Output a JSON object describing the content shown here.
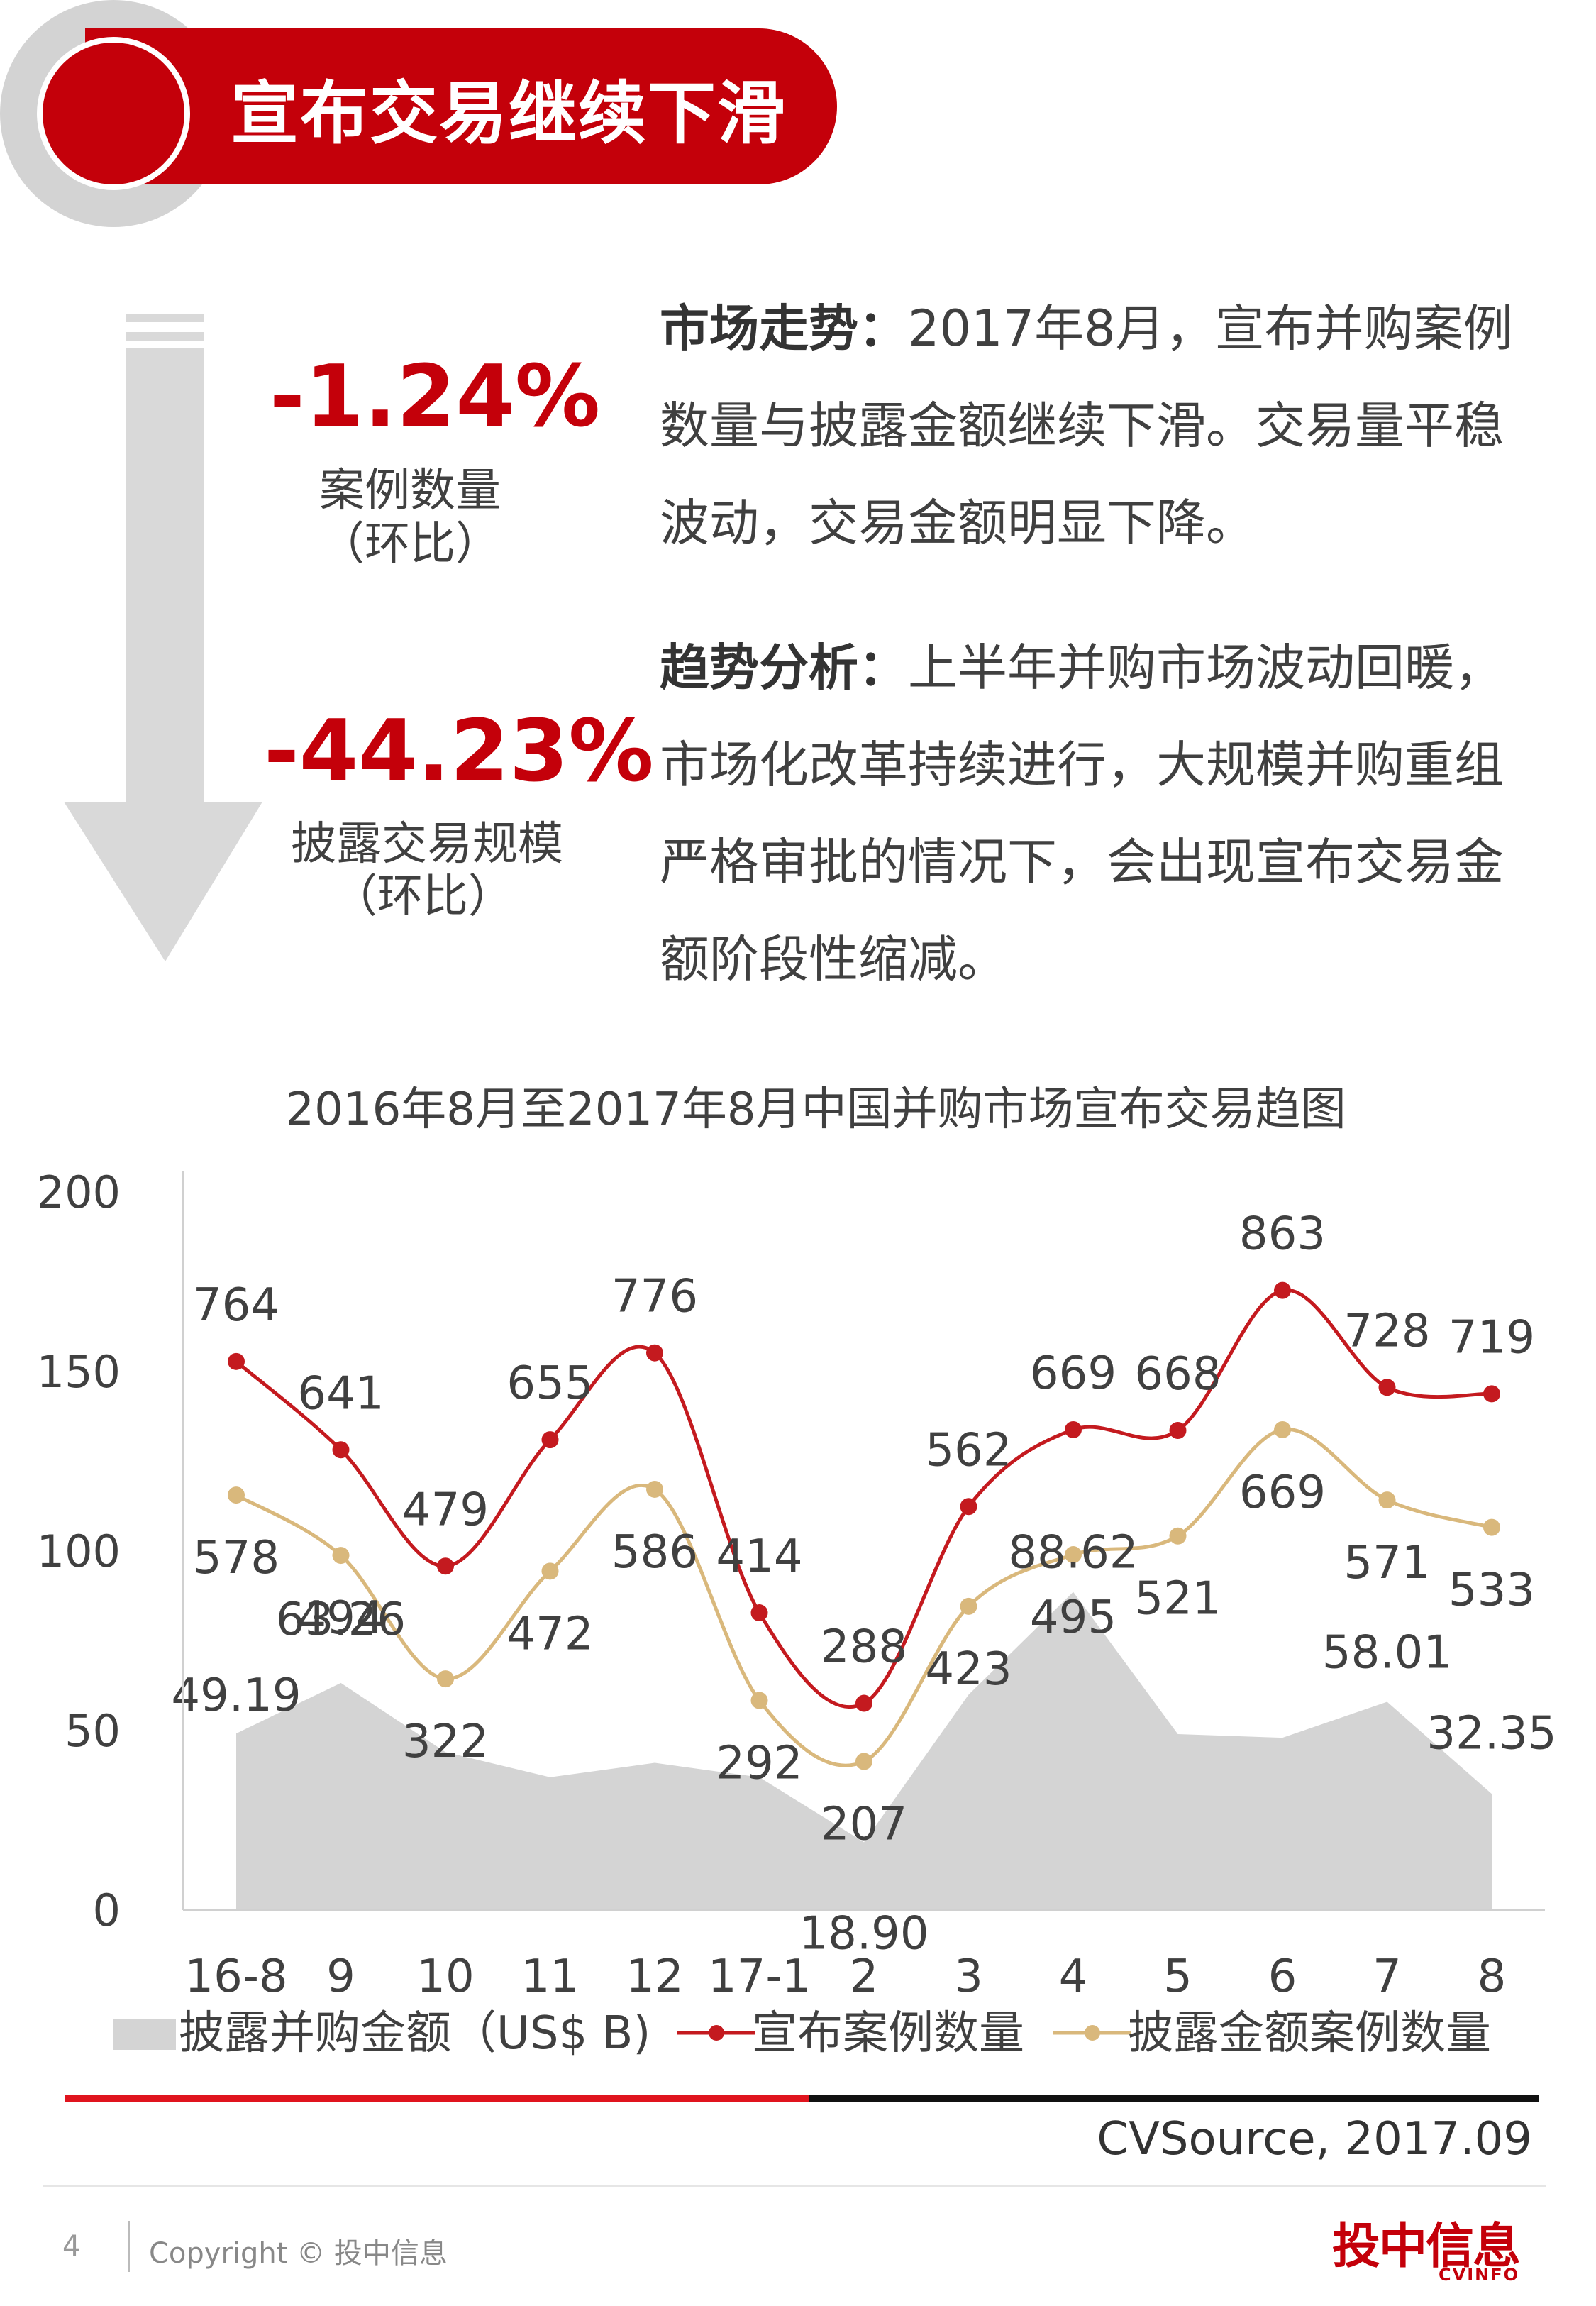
{
  "header": {
    "title": "宣布交易继续下滑"
  },
  "stats": [
    {
      "value": "-1.24%",
      "label": "案例数量",
      "sub": "（环比）"
    },
    {
      "value": "-44.23%",
      "label": "披露交易规模",
      "sub": "（环比）"
    }
  ],
  "paragraphs": [
    {
      "lead": "市场走势：",
      "text": "2017年8月，宣布并购案例数量与披露金额继续下滑。交易量平稳波动，交易金额明显下降。"
    },
    {
      "lead": "趋势分析：",
      "text": "上半年并购市场波动回暖，市场化改革持续进行，大规模并购重组严格审批的情况下，会出现宣布交易金额阶段性缩减。"
    }
  ],
  "chart_data": {
    "type": "line",
    "title": "2016年8月至2017年8月中国并购市场宣布交易趋图",
    "categories": [
      "16-8",
      "9",
      "10",
      "11",
      "12",
      "17-1",
      "2",
      "3",
      "4",
      "5",
      "6",
      "7",
      "8"
    ],
    "y_ticks": [
      "0",
      "50",
      "100",
      "150",
      "200"
    ],
    "ylim": [
      0,
      200
    ],
    "legend_position": "bottom",
    "series": [
      {
        "name": "披露并购金额（US$ B)",
        "type": "area",
        "color": "#d4d4d4",
        "values": [
          49.19,
          63.26,
          44,
          37,
          41,
          37,
          18.9,
          60,
          88.62,
          49,
          48,
          58.01,
          32.35
        ],
        "labels": [
          "49.19",
          "63.26",
          "",
          "",
          "",
          "",
          "18.90",
          "",
          "88.62",
          "",
          "",
          "58.01",
          "32.35"
        ]
      },
      {
        "name": "宣布案例数量",
        "type": "line",
        "color": "#c41a1f",
        "values": [
          764,
          641,
          479,
          655,
          776,
          414,
          288,
          562,
          669,
          668,
          863,
          728,
          719
        ],
        "labels": [
          "764",
          "641",
          "479",
          "655",
          "776",
          "414",
          "288",
          "562",
          "669",
          "668",
          "863",
          "728",
          "719"
        ]
      },
      {
        "name": "披露金额案例数量",
        "type": "line",
        "color": "#d9b87c",
        "values": [
          578,
          494,
          322,
          472,
          586,
          292,
          207,
          423,
          495,
          521,
          669,
          571,
          533
        ],
        "labels": [
          "578",
          "494",
          "322",
          "472",
          "586",
          "292",
          "207",
          "423",
          "495",
          "521",
          "669",
          "571",
          "533"
        ]
      }
    ]
  },
  "footer": {
    "source": "CVSource, 2017.09",
    "page_number": "4",
    "copyright": "Copyright © 投中信息",
    "logo_cn": "投中信息",
    "logo_en": "CVINFO"
  }
}
